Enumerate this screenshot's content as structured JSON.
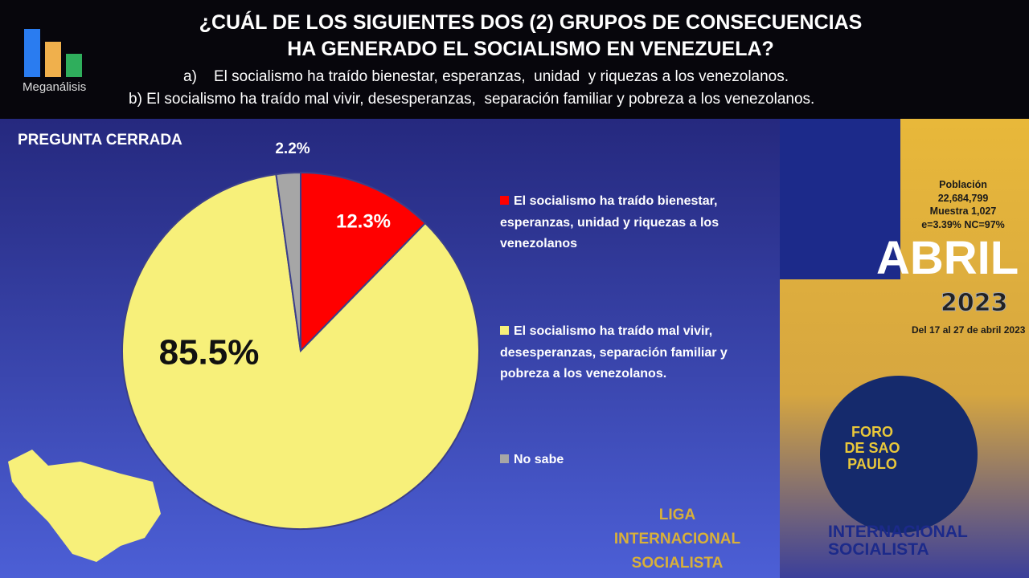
{
  "header": {
    "brand": "Meganálisis",
    "title_line1": "¿CUÁL DE LOS SIGUIENTES DOS (2) GRUPOS DE CONSECUENCIAS",
    "title_line2": "HA GENERADO EL SOCIALISMO EN VENEZUELA?",
    "option_a": "a)    El socialismo ha traído bienestar, esperanzas,  unidad  y riquezas a los venezolanos.",
    "option_b": "b) El socialismo ha traído mal vivir, desesperanzas,  separación familiar y pobreza a los venezolanos."
  },
  "subtitle": "PREGUNTA  CERRADA",
  "info": {
    "l1": "Población",
    "l2": "22,684,799",
    "l3": "Muestra 1,027",
    "l4": "e=3.39%  NC=97%",
    "month": "ABRIL",
    "year": "2023",
    "dates": "Del 17 al 27 de abril 2023"
  },
  "logos": {
    "foro": "FORO DE SAO PAULO",
    "liga": "LIGA INTERNACIONAL SOCIALISTA",
    "intl": "INTERNACIONAL SOCIALISTA"
  },
  "chart_data": {
    "type": "pie",
    "title": "¿CUÁL DE LOS SIGUIENTES DOS (2) GRUPOS DE CONSECUENCIAS HA GENERADO EL SOCIALISMO EN VENEZUELA?",
    "labels": [
      "El socialismo ha traído bienestar, esperanzas, unidad y riquezas a los venezolanos",
      "El socialismo ha traído mal vivir, desesperanzas, separación familiar y pobreza a los venezolanos.",
      "No sabe"
    ],
    "values": [
      12.3,
      85.5,
      2.2
    ],
    "data_labels": [
      "12.3%",
      "85.5%",
      "2.2%"
    ],
    "colors": [
      "#ff0000",
      "#f7f07a",
      "#a6a6a6"
    ],
    "legend": "right"
  }
}
